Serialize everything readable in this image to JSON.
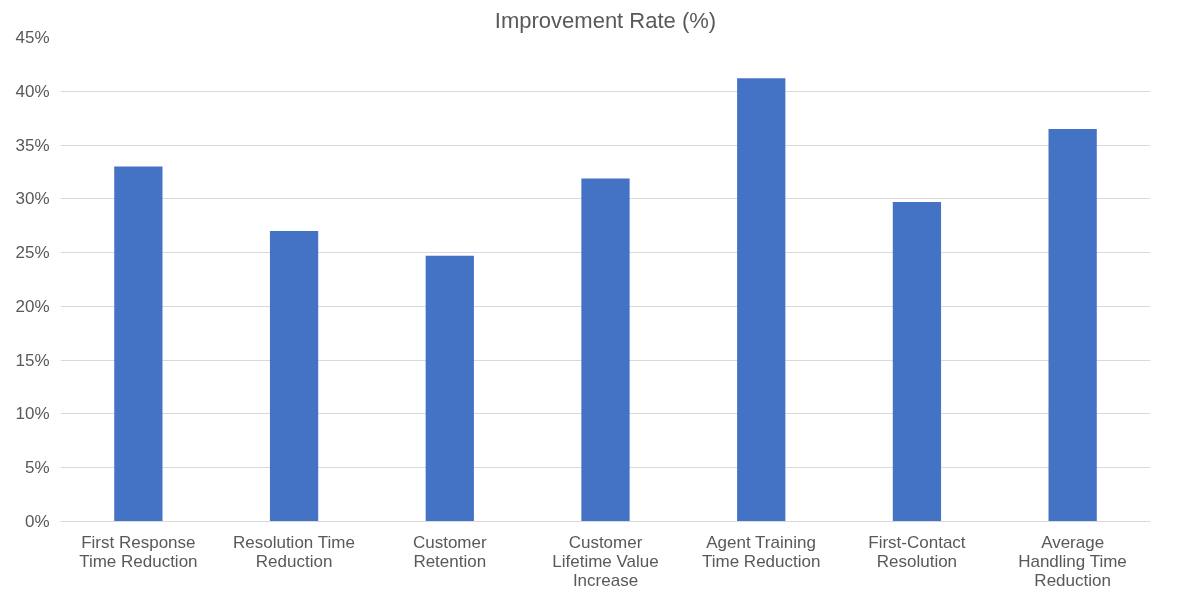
{
  "chart_data": {
    "type": "bar",
    "title": "Improvement Rate (%)",
    "categories": [
      "First Response Time Reduction",
      "Resolution Time Reduction",
      "Customer Retention",
      "Customer Lifetime Value Increase",
      "Agent Training Time Reduction",
      "First-Contact Resolution",
      "Average Handling Time Reduction"
    ],
    "values": [
      33,
      27,
      24.7,
      31.9,
      41.2,
      29.7,
      36.5
    ],
    "color": "#4472c4",
    "ylim": [
      0,
      45
    ],
    "yticks": [
      {
        "value": 0,
        "label": "0%"
      },
      {
        "value": 5,
        "label": "5%"
      },
      {
        "value": 10,
        "label": "10%"
      },
      {
        "value": 15,
        "label": "15%"
      },
      {
        "value": 20,
        "label": "20%"
      },
      {
        "value": 25,
        "label": "25%"
      },
      {
        "value": 30,
        "label": "30%"
      },
      {
        "value": 35,
        "label": "35%"
      },
      {
        "value": 40,
        "label": "40%"
      },
      {
        "value": 45,
        "label": "45%"
      }
    ],
    "grid": "y"
  }
}
